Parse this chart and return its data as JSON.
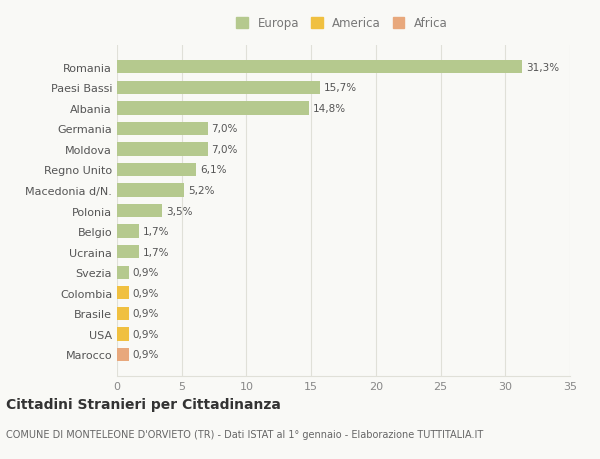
{
  "categories": [
    "Marocco",
    "USA",
    "Brasile",
    "Colombia",
    "Svezia",
    "Ucraina",
    "Belgio",
    "Polonia",
    "Macedonia d/N.",
    "Regno Unito",
    "Moldova",
    "Germania",
    "Albania",
    "Paesi Bassi",
    "Romania"
  ],
  "values": [
    0.9,
    0.9,
    0.9,
    0.9,
    0.9,
    1.7,
    1.7,
    3.5,
    5.2,
    6.1,
    7.0,
    7.0,
    14.8,
    15.7,
    31.3
  ],
  "colors": [
    "#E8A87C",
    "#F0C040",
    "#F0C040",
    "#F0C040",
    "#B5C98E",
    "#B5C98E",
    "#B5C98E",
    "#B5C98E",
    "#B5C98E",
    "#B5C98E",
    "#B5C98E",
    "#B5C98E",
    "#B5C98E",
    "#B5C98E",
    "#B5C98E"
  ],
  "labels": [
    "0,9%",
    "0,9%",
    "0,9%",
    "0,9%",
    "0,9%",
    "1,7%",
    "1,7%",
    "3,5%",
    "5,2%",
    "6,1%",
    "7,0%",
    "7,0%",
    "14,8%",
    "15,7%",
    "31,3%"
  ],
  "legend": [
    {
      "label": "Europa",
      "color": "#B5C98E"
    },
    {
      "label": "America",
      "color": "#F0C040"
    },
    {
      "label": "Africa",
      "color": "#E8A87C"
    }
  ],
  "xlim": [
    0,
    35
  ],
  "xticks": [
    0,
    5,
    10,
    15,
    20,
    25,
    30,
    35
  ],
  "title": "Cittadini Stranieri per Cittadinanza",
  "subtitle": "COMUNE DI MONTELEONE D'ORVIETO (TR) - Dati ISTAT al 1° gennaio - Elaborazione TUTTITALIA.IT",
  "background_color": "#f9f9f6",
  "grid_color": "#e0e0d8",
  "bar_height": 0.65,
  "label_fontsize": 7.5,
  "ytick_fontsize": 8,
  "xtick_fontsize": 8,
  "title_fontsize": 10,
  "subtitle_fontsize": 7
}
